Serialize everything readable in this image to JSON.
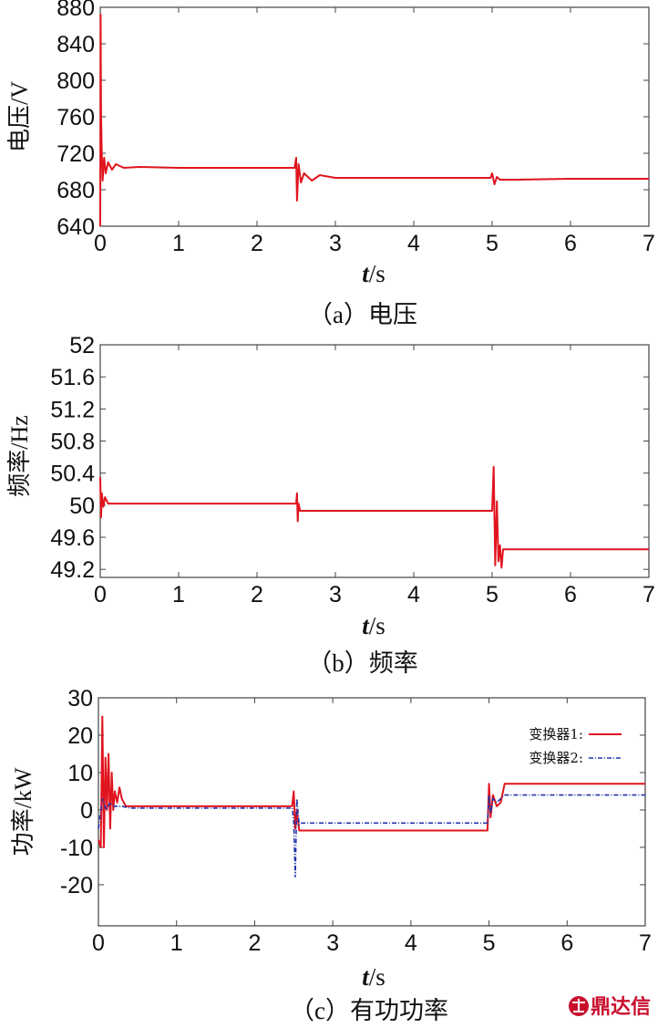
{
  "chart_data": [
    {
      "type": "line",
      "ylabel": "电压/V",
      "xlabel_var": "t",
      "xlabel_unit": "/s",
      "caption": "（a）电压",
      "xlim": [
        0,
        7
      ],
      "ylim": [
        640,
        880
      ],
      "x_ticks": [
        "0",
        "1",
        "2",
        "3",
        "4",
        "5",
        "6",
        "7"
      ],
      "y_ticks": [
        "640",
        "680",
        "720",
        "760",
        "800",
        "840",
        "880"
      ],
      "y_tick_values": [
        640,
        680,
        720,
        760,
        800,
        840,
        880
      ],
      "series": [
        {
          "color": "#e0141e",
          "x": [
            0.0,
            0.005,
            0.01,
            0.02,
            0.03,
            0.05,
            0.07,
            0.1,
            0.15,
            0.2,
            0.3,
            0.5,
            1.0,
            1.5,
            2.0,
            2.48,
            2.5,
            2.51,
            2.53,
            2.56,
            2.6,
            2.7,
            2.8,
            3.0,
            3.5,
            4.0,
            4.5,
            4.98,
            5.0,
            5.03,
            5.06,
            5.1,
            5.3,
            6.0,
            7.0
          ],
          "y": [
            640,
            872,
            760,
            720,
            690,
            715,
            698,
            710,
            702,
            708,
            704,
            705,
            704,
            704,
            704,
            704,
            715,
            668,
            708,
            688,
            698,
            690,
            696,
            693,
            693,
            693,
            693,
            693,
            698,
            686,
            694,
            691,
            691,
            692,
            692
          ]
        }
      ]
    },
    {
      "type": "line",
      "ylabel": "频率/Hz",
      "xlabel_var": "t",
      "xlabel_unit": "/s",
      "caption": "（b）频率",
      "xlim": [
        0,
        7
      ],
      "ylim": [
        49.1,
        52
      ],
      "x_ticks": [
        "0",
        "1",
        "2",
        "3",
        "4",
        "5",
        "6",
        "7"
      ],
      "y_ticks": [
        "49.2",
        "49.6",
        "50",
        "50.4",
        "50.8",
        "51.2",
        "51.6",
        "52"
      ],
      "y_tick_values": [
        49.2,
        49.6,
        50,
        50.4,
        50.8,
        51.2,
        51.6,
        52
      ],
      "series": [
        {
          "color": "#e0141e",
          "x": [
            0.0,
            0.01,
            0.02,
            0.04,
            0.06,
            0.1,
            0.2,
            0.5,
            1.0,
            2.0,
            2.5,
            2.51,
            2.52,
            2.53,
            2.55,
            2.6,
            3.0,
            4.0,
            5.0,
            5.02,
            5.04,
            5.06,
            5.08,
            5.1,
            5.12,
            5.14,
            5.2,
            6.0,
            7.0
          ],
          "y": [
            50.35,
            49.85,
            50.15,
            49.98,
            50.1,
            50.02,
            50.02,
            50.02,
            50.02,
            50.02,
            50.02,
            50.15,
            49.8,
            50.02,
            49.93,
            49.93,
            49.93,
            49.93,
            49.93,
            50.48,
            49.25,
            50.05,
            49.3,
            49.5,
            49.22,
            49.45,
            49.45,
            49.45,
            49.45
          ]
        }
      ]
    },
    {
      "type": "line",
      "ylabel": "功率/kW",
      "xlabel_var": "t",
      "xlabel_unit": "/s",
      "caption": "（c）有功功率",
      "xlim": [
        0,
        7
      ],
      "ylim": [
        -31,
        30
      ],
      "x_ticks": [
        "0",
        "1",
        "2",
        "3",
        "4",
        "5",
        "6",
        "7"
      ],
      "y_ticks": [
        "-20",
        "-10",
        "0",
        "10",
        "20",
        "30"
      ],
      "y_tick_values": [
        -20,
        -10,
        0,
        10,
        20,
        30
      ],
      "legend": "top-right",
      "series": [
        {
          "name": "变换器1:",
          "color": "#e0141e",
          "x": [
            0.0,
            0.03,
            0.05,
            0.07,
            0.09,
            0.11,
            0.13,
            0.15,
            0.17,
            0.19,
            0.21,
            0.24,
            0.27,
            0.3,
            0.35,
            0.4,
            1.0,
            2.0,
            2.48,
            2.5,
            2.52,
            2.54,
            2.57,
            2.6,
            3.0,
            4.0,
            4.98,
            5.0,
            5.02,
            5.05,
            5.1,
            5.15,
            5.2,
            5.25,
            6.0,
            7.0
          ],
          "y": [
            -8,
            -10,
            25,
            -10,
            14,
            0,
            15,
            -5,
            10,
            0,
            5,
            2,
            6,
            3,
            1,
            1,
            1,
            1,
            1,
            5,
            -5,
            0,
            -5.5,
            -5.5,
            -5.5,
            -5.5,
            -5.5,
            7,
            -2,
            4,
            1,
            2,
            7,
            7,
            7,
            7
          ]
        },
        {
          "name": "变换器2:",
          "color": "#2233aa",
          "x": [
            0.0,
            0.05,
            0.1,
            0.15,
            0.2,
            0.3,
            0.4,
            1.0,
            2.0,
            2.48,
            2.5,
            2.52,
            2.54,
            2.57,
            2.6,
            3.0,
            4.0,
            4.98,
            5.0,
            5.02,
            5.05,
            5.1,
            5.2,
            5.25,
            6.0,
            7.0
          ],
          "y": [
            -5,
            3,
            0,
            2,
            1,
            1,
            0.5,
            0.5,
            0.5,
            0.5,
            -3,
            -18,
            3,
            -4,
            -3.5,
            -3.5,
            -3.5,
            -3.5,
            4,
            -1,
            3,
            2,
            4,
            4,
            4,
            4
          ]
        }
      ]
    }
  ],
  "watermark": {
    "icon": "seal-logo-icon",
    "text": "鼎达信"
  }
}
